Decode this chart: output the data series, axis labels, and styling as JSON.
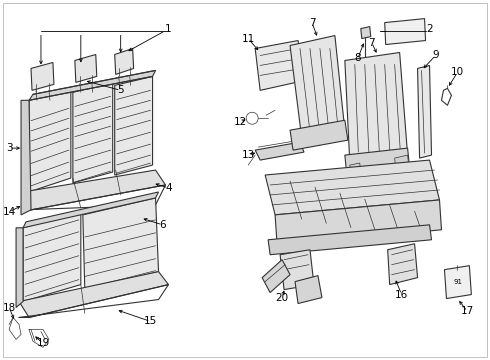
{
  "background_color": "#ffffff",
  "line_color": "#333333",
  "text_color": "#000000",
  "fig_width": 4.9,
  "fig_height": 3.6,
  "dpi": 100
}
